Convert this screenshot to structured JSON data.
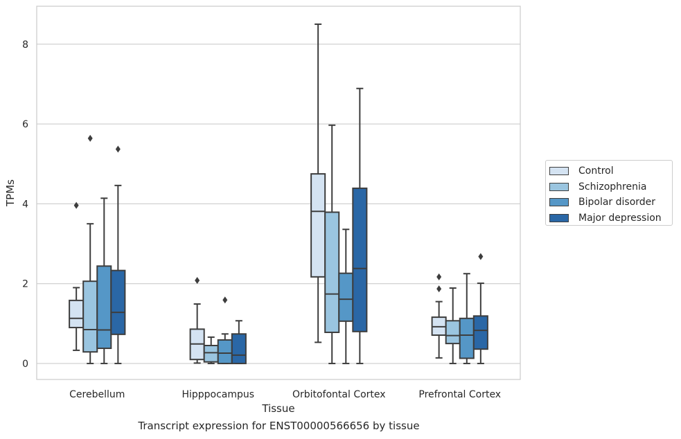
{
  "chart_data": {
    "type": "box",
    "caption": "Transcript expression for ENST00000566656 by tissue",
    "xlabel": "Tissue",
    "ylabel": "TPMs",
    "ylim": [
      -0.4,
      8.95
    ],
    "yticks": [
      0,
      2,
      4,
      6,
      8
    ],
    "grid": "horizontal",
    "legend_position": "right",
    "categories": [
      "Cerebellum",
      "Hipppocampus",
      "Orbitofontal Cortex",
      "Prefrontal Cortex"
    ],
    "series": [
      {
        "name": "Control",
        "color": "#d4e3f2",
        "boxes": [
          {
            "whisker_low": 0.33,
            "q1": 0.9,
            "median": 1.13,
            "q3": 1.58,
            "whisker_high": 1.9,
            "outliers": [
              3.96
            ]
          },
          {
            "whisker_low": 0.01,
            "q1": 0.1,
            "median": 0.49,
            "q3": 0.86,
            "whisker_high": 1.49,
            "outliers": [
              2.08
            ]
          },
          {
            "whisker_low": 0.53,
            "q1": 2.17,
            "median": 3.81,
            "q3": 4.75,
            "whisker_high": 8.5,
            "outliers": []
          },
          {
            "whisker_low": 0.14,
            "q1": 0.71,
            "median": 0.92,
            "q3": 1.16,
            "whisker_high": 1.55,
            "outliers": [
              1.87,
              2.17
            ]
          }
        ]
      },
      {
        "name": "Schizophrenia",
        "color": "#9ac5e0",
        "boxes": [
          {
            "whisker_low": 0.0,
            "q1": 0.29,
            "median": 0.85,
            "q3": 2.06,
            "whisker_high": 3.5,
            "outliers": [
              5.64
            ]
          },
          {
            "whisker_low": 0.0,
            "q1": 0.04,
            "median": 0.27,
            "q3": 0.45,
            "whisker_high": 0.66,
            "outliers": []
          },
          {
            "whisker_low": 0.0,
            "q1": 0.78,
            "median": 1.74,
            "q3": 3.79,
            "whisker_high": 5.97,
            "outliers": []
          },
          {
            "whisker_low": 0.0,
            "q1": 0.5,
            "median": 0.7,
            "q3": 1.07,
            "whisker_high": 1.89,
            "outliers": []
          }
        ]
      },
      {
        "name": "Bipolar disorder",
        "color": "#5597c7",
        "boxes": [
          {
            "whisker_low": 0.0,
            "q1": 0.38,
            "median": 0.84,
            "q3": 2.44,
            "whisker_high": 4.14,
            "outliers": []
          },
          {
            "whisker_low": 0.0,
            "q1": 0.0,
            "median": 0.26,
            "q3": 0.59,
            "whisker_high": 0.74,
            "outliers": [
              1.59
            ]
          },
          {
            "whisker_low": 0.0,
            "q1": 1.06,
            "median": 1.61,
            "q3": 2.26,
            "whisker_high": 3.36,
            "outliers": []
          },
          {
            "whisker_low": 0.0,
            "q1": 0.13,
            "median": 0.71,
            "q3": 1.13,
            "whisker_high": 2.25,
            "outliers": []
          }
        ]
      },
      {
        "name": "Major depression",
        "color": "#2a67a6",
        "boxes": [
          {
            "whisker_low": 0.0,
            "q1": 0.73,
            "median": 1.28,
            "q3": 2.33,
            "whisker_high": 4.46,
            "outliers": [
              5.37
            ]
          },
          {
            "whisker_low": 0.0,
            "q1": 0.0,
            "median": 0.21,
            "q3": 0.74,
            "whisker_high": 1.07,
            "outliers": []
          },
          {
            "whisker_low": 0.0,
            "q1": 0.8,
            "median": 2.38,
            "q3": 4.39,
            "whisker_high": 6.89,
            "outliers": []
          },
          {
            "whisker_low": 0.0,
            "q1": 0.36,
            "median": 0.83,
            "q3": 1.19,
            "whisker_high": 2.01,
            "outliers": [
              2.68
            ]
          }
        ]
      }
    ]
  }
}
